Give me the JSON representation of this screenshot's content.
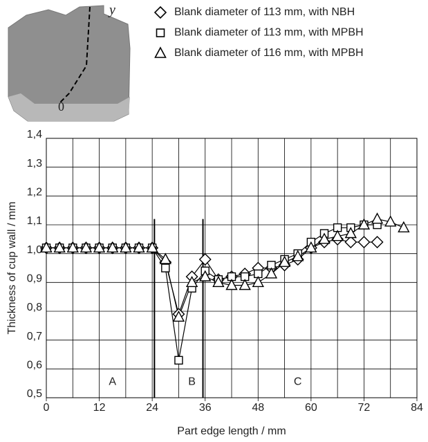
{
  "chart_data": {
    "type": "line",
    "xlabel": "Part edge length / mm",
    "ylabel": "Thickness of cup wall / mm",
    "xlim": [
      0,
      84
    ],
    "ylim": [
      0.5,
      1.4
    ],
    "xticks": [
      0,
      12,
      24,
      36,
      48,
      60,
      72,
      84
    ],
    "xgrid": [
      0,
      6,
      12,
      18,
      24,
      30,
      36,
      42,
      48,
      54,
      60,
      66,
      72,
      78,
      84
    ],
    "yticks": [
      {
        "value": 0.5,
        "label": "0,5"
      },
      {
        "value": 0.6,
        "label": "0,6"
      },
      {
        "value": 0.7,
        "label": "0,7"
      },
      {
        "value": 0.8,
        "label": "0,8"
      },
      {
        "value": 0.9,
        "label": "0,9"
      },
      {
        "value": 1.0,
        "label": "1,0"
      },
      {
        "value": 1.1,
        "label": "1,1"
      },
      {
        "value": 1.2,
        "label": "1,2"
      },
      {
        "value": 1.3,
        "label": "1,3"
      },
      {
        "value": 1.4,
        "label": "1,4"
      }
    ],
    "grid": true,
    "section_lines": [
      24.5,
      35.5
    ],
    "section_labels": [
      {
        "text": "A",
        "x": 15,
        "y": 0.555
      },
      {
        "text": "B",
        "x": 33,
        "y": 0.555
      },
      {
        "text": "C",
        "x": 57,
        "y": 0.555
      }
    ],
    "inset_labels": {
      "axis": "y",
      "origin": "0"
    },
    "series": [
      {
        "name": "Blank diameter of 113 mm, with NBH",
        "marker": "diamond",
        "color": "#000000",
        "x": [
          0,
          3,
          6,
          9,
          12,
          15,
          18,
          21,
          24,
          27,
          30,
          33,
          36,
          39,
          42,
          45,
          48,
          51,
          54,
          57,
          60,
          63,
          66,
          69,
          72,
          75
        ],
        "values": [
          1.02,
          1.02,
          1.02,
          1.02,
          1.02,
          1.02,
          1.02,
          1.02,
          1.02,
          0.97,
          0.79,
          0.92,
          0.98,
          0.91,
          0.92,
          0.93,
          0.95,
          0.95,
          0.96,
          0.98,
          1.02,
          1.04,
          1.05,
          1.04,
          1.04,
          1.04
        ]
      },
      {
        "name": "Blank diameter of 113 mm, with MPBH",
        "marker": "square",
        "color": "#000000",
        "x": [
          0,
          3,
          6,
          9,
          12,
          15,
          18,
          21,
          24,
          27,
          30,
          33,
          36,
          39,
          42,
          45,
          48,
          51,
          54,
          57,
          60,
          63,
          66,
          69,
          72,
          75
        ],
        "values": [
          1.02,
          1.02,
          1.02,
          1.02,
          1.02,
          1.02,
          1.02,
          1.02,
          1.02,
          0.95,
          0.63,
          0.88,
          0.94,
          0.91,
          0.92,
          0.92,
          0.93,
          0.96,
          0.98,
          1.0,
          1.04,
          1.07,
          1.09,
          1.09,
          1.1,
          1.1
        ]
      },
      {
        "name": "Blank diameter of 116 mm, with MPBH",
        "marker": "triangle",
        "color": "#000000",
        "x": [
          0,
          3,
          6,
          9,
          12,
          15,
          18,
          21,
          24,
          27,
          30,
          33,
          36,
          39,
          42,
          45,
          48,
          51,
          54,
          57,
          60,
          63,
          66,
          69,
          72,
          75,
          78,
          81
        ],
        "values": [
          1.02,
          1.02,
          1.02,
          1.02,
          1.02,
          1.02,
          1.02,
          1.02,
          1.02,
          0.98,
          0.78,
          0.9,
          0.92,
          0.9,
          0.89,
          0.89,
          0.9,
          0.93,
          0.97,
          0.99,
          1.02,
          1.05,
          1.06,
          1.07,
          1.1,
          1.12,
          1.11,
          1.09
        ]
      }
    ]
  }
}
